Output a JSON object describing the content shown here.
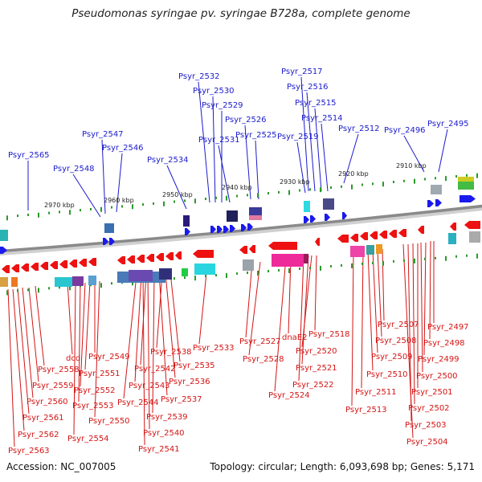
{
  "title": "Pseudomonas syringae pv. syringae B728a, complete genome",
  "footer": {
    "accession": "Accession: NC_007005",
    "stats": "Topology: circular; Length: 6,093,698 bp; Genes: 5,171"
  },
  "kbp_labels": [
    "2970 kbp",
    "2960 kbp",
    "2950 kbp",
    "2940 kbp",
    "2930 kbp",
    "2920 kbp",
    "2910 kbp"
  ],
  "genes_top": [
    "Psyr_2565",
    "Psyr_2548",
    "Psyr_2547",
    "Psyr_2546",
    "Psyr_2534",
    "Psyr_2532",
    "Psyr_2530",
    "Psyr_2529",
    "Psyr_2531",
    "Psyr_2526",
    "Psyr_2525",
    "Psyr_2517",
    "Psyr_2516",
    "Psyr_2515",
    "Psyr_2514",
    "Psyr_2519",
    "Psyr_2512",
    "Psyr_2496",
    "Psyr_2495"
  ],
  "genes_bottom": [
    "dcd",
    "Psyr_2549",
    "Psyr_2558",
    "Psyr_2551",
    "Psyr_2559",
    "Psyr_2552",
    "Psyr_2560",
    "Psyr_2553",
    "Psyr_2550",
    "Psyr_2561",
    "Psyr_2554",
    "Psyr_2562",
    "Psyr_2563",
    "Psyr_2538",
    "Psyr_2542",
    "Psyr_2535",
    "Psyr_2543",
    "Psyr_2536",
    "Psyr_2544",
    "Psyr_2537",
    "Psyr_2539",
    "Psyr_2540",
    "Psyr_2541",
    "Psyr_2533",
    "Psyr_2527",
    "Psyr_2528",
    "dnaE2",
    "Psyr_2518",
    "Psyr_2520",
    "Psyr_2521",
    "Psyr_2522",
    "Psyr_2524",
    "Psyr_2507",
    "Psyr_2497",
    "Psyr_2508",
    "Psyr_2498",
    "Psyr_2509",
    "Psyr_2499",
    "Psyr_2510",
    "Psyr_2500",
    "Psyr_2511",
    "Psyr_2501",
    "Psyr_2513",
    "Psyr_2502",
    "Psyr_2503",
    "Psyr_2504"
  ],
  "colors": {
    "forward_strand": "#1a1aee",
    "reverse_strand": "#ee1111",
    "backbone": "#8a8a8a",
    "tick": "#2a9a2a",
    "label_blue": "#1b1bcc",
    "label_red": "#d41414"
  }
}
